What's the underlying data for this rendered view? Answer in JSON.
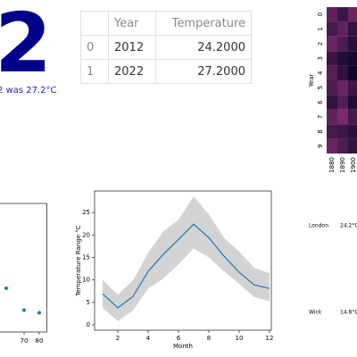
{
  "kpi": {
    "value": "2",
    "caption": "2 was 27.2°C"
  },
  "table": {
    "columns": [
      "Year",
      "Temperature"
    ],
    "rows": [
      {
        "index": "0",
        "cells": [
          "2012",
          "24.2000"
        ]
      },
      {
        "index": "1",
        "cells": [
          "2022",
          "27.2000"
        ]
      }
    ]
  },
  "chart_data": [
    {
      "type": "heatmap",
      "y_label": "Year",
      "rows": [
        "0",
        "1",
        "2",
        "3",
        "4",
        "5",
        "6",
        "7",
        "8",
        "9"
      ],
      "columns": [
        "1880",
        "1890",
        "1900"
      ],
      "values": [
        [
          0.55,
          0.35,
          0.6
        ],
        [
          0.4,
          0.55,
          0.3
        ],
        [
          0.6,
          0.45,
          0.25
        ],
        [
          0.35,
          0.2,
          0.15
        ],
        [
          0.5,
          0.3,
          0.1
        ],
        [
          0.45,
          0.6,
          0.35
        ],
        [
          0.3,
          0.5,
          0.2
        ],
        [
          0.55,
          0.7,
          0.4
        ],
        [
          0.4,
          0.35,
          0.25
        ],
        [
          0.6,
          0.45,
          0.3
        ]
      ],
      "colors": [
        "#0d0829",
        "#7b2a6e"
      ]
    },
    {
      "type": "scatter",
      "x": [
        58.2,
        70,
        80
      ],
      "values": [
        0.34,
        0.17,
        0.15
      ],
      "xlim": [
        45,
        85
      ],
      "ylim": [
        0,
        1
      ],
      "xticks": [
        70,
        80
      ],
      "color": "#1f77b4"
    },
    {
      "type": "line",
      "x_label": "Month",
      "y_label": "Temperature Range °C",
      "x": [
        1,
        2,
        3,
        4,
        5,
        6,
        7,
        8,
        9,
        10,
        11,
        12
      ],
      "values": [
        6.9,
        3.8,
        6.3,
        11.9,
        15.7,
        19.0,
        22.4,
        19.4,
        15.3,
        11.7,
        8.9,
        8.1
      ],
      "lower": [
        3.8,
        0.8,
        3.2,
        8.1,
        10.3,
        13.5,
        17.0,
        15.0,
        11.9,
        9.1,
        6.2,
        5.2
      ],
      "upper": [
        10.0,
        6.7,
        9.9,
        16.0,
        20.8,
        23.4,
        28.6,
        24.6,
        19.4,
        16.3,
        12.7,
        11.5
      ],
      "xlim": [
        0.47,
        12.12
      ],
      "ylim": [
        -1.2,
        29.8
      ],
      "xticks": [
        2,
        4,
        6,
        8,
        10,
        12
      ],
      "yticks": [
        0,
        5,
        10,
        15,
        20,
        25
      ],
      "color": "#1f77b4",
      "band_color": "#d3d3d3"
    }
  ],
  "cities": [
    {
      "name": "London",
      "temperature": "24.2°C"
    },
    {
      "name": "Wick",
      "temperature": "14.8°C"
    }
  ]
}
